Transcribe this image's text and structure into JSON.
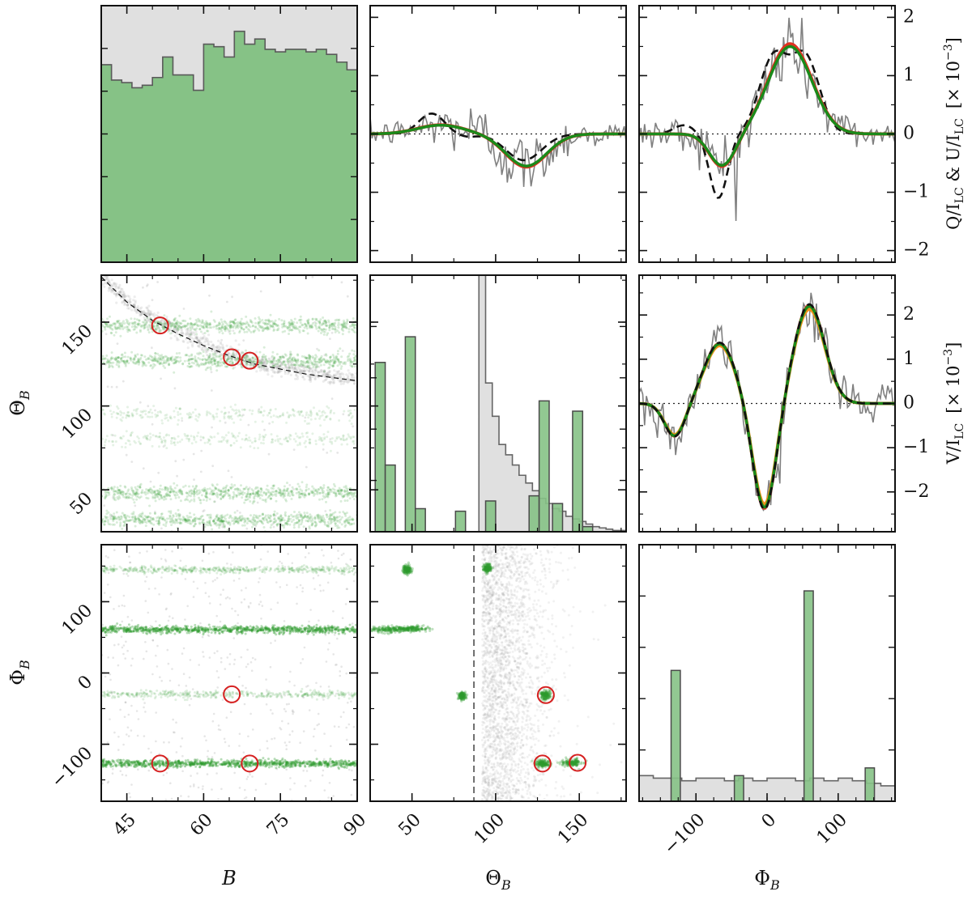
{
  "chart_data": {
    "type": "corner-plot",
    "colors": {
      "posterior": "#2f9a2f",
      "prior": "#9a9a9a",
      "observed": "#808080",
      "best_fit_red": "#e03020",
      "best_fit_orange": "#f0901a",
      "best_fit_green": "#1a8a1a",
      "dashed_model": "#111111",
      "hist_green_fill": "#86c286",
      "hist_grey_fill": "#e0e0e0",
      "marker": "#d62020"
    },
    "parameters": [
      "B",
      "Θ_B",
      "Φ_B"
    ],
    "axis_labels": {
      "x": {
        "B": "B",
        "theta": "Θ",
        "theta_sub": "B",
        "phi": "Φ",
        "phi_sub": "B"
      },
      "y": {
        "theta": "Θ",
        "theta_sub": "B",
        "phi": "Φ",
        "phi_sub": "B"
      },
      "right_qu_main": "Q/I",
      "right_qu_sub1": "LC",
      "right_qu_mid": " & U/I",
      "right_qu_sub2": "LC",
      "right_qu_scale": "[× 10",
      "right_qu_exp": "−3",
      "right_qu_close": "]",
      "right_v_main": "V/I",
      "right_v_sub": "LC",
      "right_v_scale": "[× 10",
      "right_v_exp": "−3",
      "right_v_close": "]"
    },
    "ranges": {
      "B": [
        40,
        90
      ],
      "theta": [
        25,
        178
      ],
      "phi": [
        -180,
        180
      ],
      "qu": [
        -2.2,
        2.2
      ],
      "v": [
        -2.9,
        2.9
      ]
    },
    "ticks": {
      "B": {
        "values": [
          45,
          60,
          75,
          90
        ],
        "labels": [
          "45",
          "60",
          "75",
          "90"
        ]
      },
      "theta_x": {
        "values": [
          50,
          100,
          150
        ],
        "labels": [
          "50",
          "100",
          "150"
        ]
      },
      "theta_y": {
        "values": [
          50,
          100,
          150
        ],
        "labels": [
          "50",
          "100",
          "150"
        ]
      },
      "phi_x": {
        "values": [
          -100,
          0,
          100
        ],
        "labels": [
          "−100",
          "0",
          "100"
        ]
      },
      "phi_y": {
        "values": [
          -100,
          0,
          100
        ],
        "labels": [
          "−100",
          "0",
          "100"
        ]
      },
      "qu": {
        "values": [
          -2,
          -1,
          0,
          1,
          2
        ],
        "labels": [
          "−2",
          "−1",
          "0",
          "1",
          "2"
        ]
      },
      "v": {
        "values": [
          -2,
          -1,
          0,
          1,
          2
        ],
        "labels": [
          "−2",
          "−1",
          "0",
          "1",
          "2"
        ]
      }
    },
    "hist_B": {
      "bin_edges": [
        40,
        42,
        44,
        46,
        48,
        50,
        52,
        54,
        56,
        58,
        60,
        62,
        64,
        66,
        68,
        70,
        72,
        74,
        76,
        78,
        80,
        82,
        84,
        86,
        88,
        90
      ],
      "posterior_counts": [
        0.77,
        0.71,
        0.7,
        0.68,
        0.69,
        0.72,
        0.8,
        0.73,
        0.73,
        0.67,
        0.85,
        0.84,
        0.8,
        0.9,
        0.85,
        0.87,
        0.83,
        0.82,
        0.83,
        0.83,
        0.82,
        0.83,
        0.81,
        0.78,
        0.75
      ],
      "grey_top": 1.0
    },
    "hist_theta": {
      "grey_edges": [
        90,
        94,
        98,
        102,
        106,
        110,
        114,
        118,
        122,
        126,
        130,
        134,
        138,
        142,
        146,
        150,
        154,
        158,
        162,
        166,
        170,
        178
      ],
      "grey_counts": [
        1.0,
        0.58,
        0.45,
        0.34,
        0.3,
        0.26,
        0.22,
        0.19,
        0.16,
        0.13,
        0.11,
        0.09,
        0.08,
        0.06,
        0.05,
        0.04,
        0.03,
        0.02,
        0.015,
        0.01,
        0.005
      ],
      "green_bins": [
        {
          "x0": 28,
          "x1": 34,
          "h": 0.66
        },
        {
          "x0": 34,
          "x1": 40,
          "h": 0.26
        },
        {
          "x0": 46,
          "x1": 52,
          "h": 0.76
        },
        {
          "x0": 52,
          "x1": 58,
          "h": 0.09
        },
        {
          "x0": 76,
          "x1": 82,
          "h": 0.08
        },
        {
          "x0": 94,
          "x1": 100,
          "h": 0.12
        },
        {
          "x0": 120,
          "x1": 126,
          "h": 0.14
        },
        {
          "x0": 126,
          "x1": 132,
          "h": 0.51
        },
        {
          "x0": 134,
          "x1": 140,
          "h": 0.11
        },
        {
          "x0": 146,
          "x1": 152,
          "h": 0.47
        },
        {
          "x0": 152,
          "x1": 158,
          "h": 0.02
        }
      ]
    },
    "hist_phi": {
      "grey_edges": [
        -180,
        -160,
        -140,
        -120,
        -100,
        -80,
        -60,
        -40,
        -20,
        0,
        20,
        40,
        60,
        80,
        100,
        120,
        140,
        160,
        180
      ],
      "grey_counts": [
        0.1,
        0.09,
        0.09,
        0.08,
        0.09,
        0.09,
        0.08,
        0.09,
        0.08,
        0.09,
        0.09,
        0.08,
        0.09,
        0.08,
        0.09,
        0.08,
        0.07,
        0.06
      ],
      "green_bins": [
        {
          "x0": -135,
          "x1": -122,
          "h": 0.51
        },
        {
          "x0": -46,
          "x1": -33,
          "h": 0.1
        },
        {
          "x0": 52,
          "x1": 65,
          "h": 0.82
        },
        {
          "x0": 138,
          "x1": 151,
          "h": 0.13
        }
      ]
    },
    "scatter_B_theta": {
      "bands": [
        {
          "theta": 148,
          "density": 1.0
        },
        {
          "theta": 127,
          "density": 1.0
        },
        {
          "theta": 95,
          "density": 0.35
        },
        {
          "theta": 80,
          "density": 0.35
        },
        {
          "theta": 48,
          "density": 1.0
        },
        {
          "theta": 32,
          "density": 1.0
        }
      ],
      "grey_curve": [
        [
          40,
          178
        ],
        [
          45,
          163
        ],
        [
          50,
          152
        ],
        [
          55,
          144
        ],
        [
          60,
          137
        ],
        [
          65,
          131
        ],
        [
          70,
          126
        ],
        [
          75,
          123
        ],
        [
          80,
          120
        ],
        [
          85,
          118
        ],
        [
          90,
          116
        ]
      ],
      "markers": [
        [
          51.5,
          148
        ],
        [
          65.5,
          129
        ],
        [
          69,
          127
        ]
      ]
    },
    "scatter_B_phi": {
      "bands": [
        {
          "phi": 145,
          "density": 0.55
        },
        {
          "phi": 61,
          "density": 1.0
        },
        {
          "phi": -30,
          "density": 0.45
        },
        {
          "phi": -127,
          "density": 1.0
        }
      ],
      "markers": [
        [
          51.5,
          -127
        ],
        [
          65.5,
          -30
        ],
        [
          69,
          -127
        ]
      ]
    },
    "scatter_theta_phi": {
      "dashed_x": 87,
      "green_clusters": [
        {
          "theta": 47,
          "phi": 145,
          "spread_x": 1.2,
          "spread_y": 3
        },
        {
          "theta": 95,
          "phi": 147,
          "spread_x": 1.2,
          "spread_y": 3
        },
        {
          "theta": 36,
          "phi": 61,
          "spread_x": 6,
          "spread_y": 2
        },
        {
          "theta": 50,
          "phi": 62,
          "spread_x": 5,
          "spread_y": 2
        },
        {
          "theta": 80,
          "phi": -32,
          "spread_x": 1,
          "spread_y": 2.5
        },
        {
          "theta": 130,
          "phi": -31,
          "spread_x": 1.5,
          "spread_y": 3
        },
        {
          "theta": 128,
          "phi": -127,
          "spread_x": 2,
          "spread_y": 2.5
        },
        {
          "theta": 146,
          "phi": -126,
          "spread_x": 3,
          "spread_y": 2.5
        }
      ],
      "markers": [
        [
          130,
          -31
        ],
        [
          128,
          -127
        ],
        [
          149,
          -126
        ]
      ]
    },
    "profile_Q": {
      "x": [
        -1,
        1
      ],
      "ref_line": 0
    },
    "profile_U": {
      "x": [
        -1,
        1
      ],
      "ref_line": 0
    },
    "profile_V": {
      "x": [
        -1,
        1
      ],
      "ref_line": 0
    }
  }
}
